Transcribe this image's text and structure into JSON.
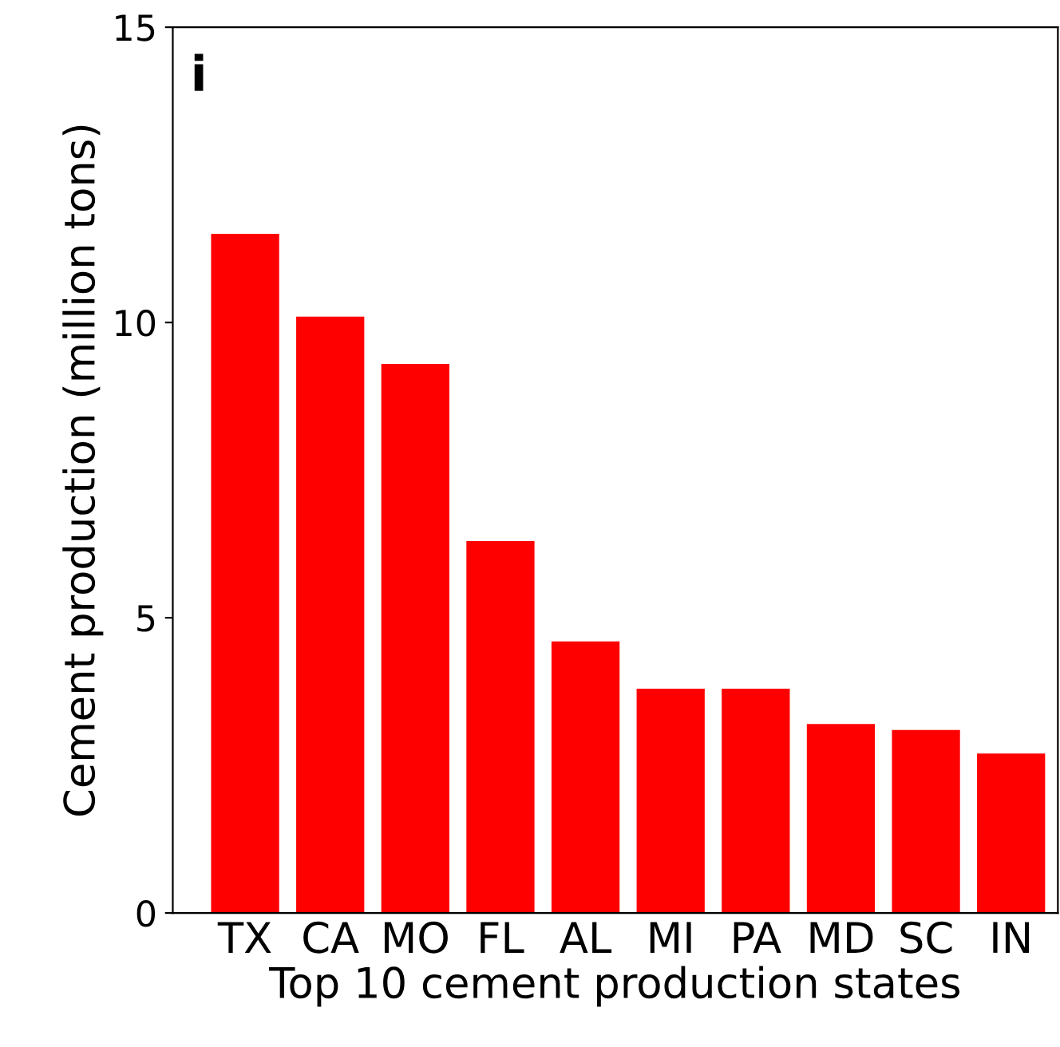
{
  "chart_data": {
    "type": "bar",
    "xlabel": "Top 10 cement production states",
    "ylabel": "Cement production (million tons)",
    "categories": [
      "TX",
      "CA",
      "MO",
      "FL",
      "AL",
      "MI",
      "PA",
      "MD",
      "SC",
      "IN"
    ],
    "values": [
      11.5,
      10.1,
      9.3,
      6.3,
      4.6,
      3.8,
      3.8,
      3.2,
      3.1,
      2.7
    ],
    "color": "#ff0000",
    "ylim": [
      0,
      15
    ],
    "yticks": [
      0,
      5,
      10,
      15
    ],
    "grid": false,
    "legend": false,
    "annotations": [
      "i"
    ]
  }
}
